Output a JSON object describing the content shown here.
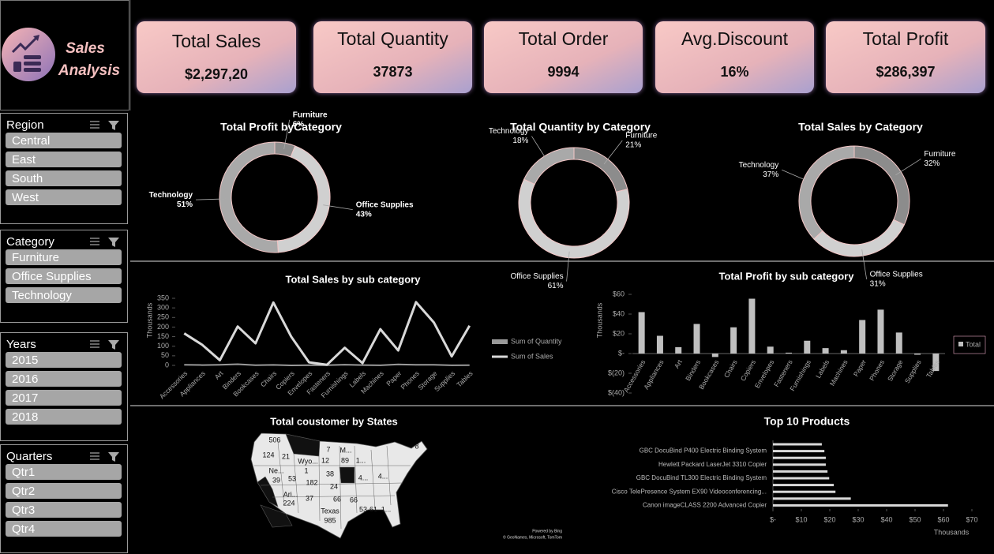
{
  "brand": {
    "line1": "Sales",
    "line2": "Analysis"
  },
  "kpis": [
    {
      "label": "Total Sales",
      "value": "$2,297,20"
    },
    {
      "label": "Total Quantity",
      "value": "37873"
    },
    {
      "label": "Total Order",
      "value": "9994"
    },
    {
      "label": "Avg.Discount",
      "value": "16%"
    },
    {
      "label": "Total Profit",
      "value": "$286,397"
    }
  ],
  "slicers": [
    {
      "title": "Region",
      "items": [
        "Central",
        "East",
        "South",
        "West"
      ]
    },
    {
      "title": "Category",
      "items": [
        "Furniture",
        "Office Supplies",
        "Technology"
      ]
    },
    {
      "title": "Years",
      "items": [
        "2015",
        "2016",
        "2017",
        "2018"
      ]
    },
    {
      "title": "Quarters",
      "items": [
        "Qtr1",
        "Qtr2",
        "Qtr3",
        "Qtr4"
      ]
    }
  ],
  "chart_data": [
    {
      "type": "donut",
      "title": "Total Profit byCategory",
      "categories": [
        "Furniture",
        "Office Supplies",
        "Technology"
      ],
      "values": [
        6,
        43,
        51
      ],
      "value_labels": [
        "6%",
        "43%",
        "51%"
      ],
      "colors": [
        "#8c8c8c",
        "#d0d0d0",
        "#a9a9a9"
      ]
    },
    {
      "type": "donut",
      "title": "Total Quantity by Category",
      "categories": [
        "Furniture",
        "Office Supplies",
        "Technology"
      ],
      "values": [
        21,
        61,
        18
      ],
      "value_labels": [
        "21%",
        "61%",
        "18%"
      ],
      "colors": [
        "#8c8c8c",
        "#d0d0d0",
        "#a9a9a9"
      ]
    },
    {
      "type": "donut",
      "title": "Total Sales by Category",
      "categories": [
        "Furniture",
        "Office Supplies",
        "Technology"
      ],
      "values": [
        32,
        31,
        37
      ],
      "value_labels": [
        "32%",
        "31%",
        "37%"
      ],
      "colors": [
        "#8c8c8c",
        "#d0d0d0",
        "#a9a9a9"
      ]
    },
    {
      "type": "line",
      "title": "Total Sales by sub category",
      "ylabel": "Thousands",
      "categories": [
        "Accessories",
        "Appliances",
        "Art",
        "Binders",
        "Bookcases",
        "Chairs",
        "Copiers",
        "Envelopes",
        "Fasteners",
        "Furnishings",
        "Labels",
        "Machines",
        "Paper",
        "Phones",
        "Storage",
        "Supplies",
        "Tables"
      ],
      "series": [
        {
          "name": "Sum of Quantity",
          "color": "#9a9a9a",
          "values": [
            2.976,
            1.755,
            3,
            6,
            0.868,
            2.356,
            0.234,
            0.906,
            0.914,
            3.563,
            1.4,
            0.44,
            5.178,
            3.289,
            3.158,
            0.647,
            1.241
          ]
        },
        {
          "name": "Sum of Sales",
          "color": "#d9d9d9",
          "values": [
            167,
            108,
            27,
            203,
            115,
            328,
            150,
            16,
            3,
            92,
            12,
            189,
            78,
            330,
            224,
            47,
            207
          ]
        }
      ],
      "ylim": [
        0,
        350
      ],
      "yticks": [
        0,
        50,
        100,
        150,
        200,
        250,
        300,
        350
      ],
      "legend": "right"
    },
    {
      "type": "bar",
      "title": "Total Profit by sub category",
      "ylabel": "Thousands",
      "categories": [
        "Accessories",
        "Appliances",
        "Art",
        "Binders",
        "Bookcases",
        "Chairs",
        "Copiers",
        "Envelopes",
        "Fasteners",
        "Furnishings",
        "Labels",
        "Machines",
        "Paper",
        "Phones",
        "Storage",
        "Supplies",
        "Tables"
      ],
      "series": [
        {
          "name": "Total",
          "color": "#bfbfbf",
          "values": [
            42,
            18,
            6.5,
            30,
            -3.5,
            26.6,
            55.6,
            7,
            0.9,
            13,
            5.5,
            3.4,
            34,
            44.5,
            21.3,
            -1.2,
            -17.7
          ]
        }
      ],
      "ylim": [
        -40,
        60
      ],
      "yticks": [
        {
          "value": -40,
          "label": "$(40)"
        },
        {
          "value": -20,
          "label": "$(20)"
        },
        {
          "value": 0,
          "label": "$-"
        },
        {
          "value": 20,
          "label": "$20"
        },
        {
          "value": 40,
          "label": "$40"
        },
        {
          "value": 60,
          "label": "$60"
        }
      ],
      "legend": "right"
    },
    {
      "type": "map",
      "title": "Total coustomer by States",
      "labels": [
        "506",
        "124",
        "21",
        "7",
        "M...",
        "8",
        "Wyo...",
        "12",
        "89",
        "1...",
        "1",
        "38",
        "Ne...",
        "39",
        "53",
        "182",
        "4...",
        "4...",
        "Ari...",
        "224",
        "37",
        "24",
        "66",
        "66",
        "Texas",
        "985",
        "53",
        "61",
        "1..."
      ],
      "attribution": [
        "Powered by Bing",
        "© GeoNames, Microsoft, TomTom"
      ]
    },
    {
      "type": "barh",
      "title": "Top 10 Products",
      "xlabel": "Thousands",
      "categories": [
        null,
        "GBC DocuBind P400 Electric Binding System",
        null,
        "Hewlett Packard LaserJet 3310 Copier",
        null,
        "GBC DocuBind TL300 Electric Binding System",
        null,
        "Cisco TelePresence System EX90 Videoconferencing...",
        null,
        "Canon imageCLASS 2200 Advanced Copier"
      ],
      "values": [
        17.2,
        18.1,
        18.6,
        18.6,
        19.2,
        19.8,
        21.4,
        22.0,
        27.4,
        61.6
      ],
      "color": "#d9d9d9",
      "xlim": [
        0,
        70
      ],
      "xticks": [
        {
          "value": 0,
          "label": "$-"
        },
        {
          "value": 10,
          "label": "$10"
        },
        {
          "value": 20,
          "label": "$20"
        },
        {
          "value": 30,
          "label": "$30"
        },
        {
          "value": 40,
          "label": "$40"
        },
        {
          "value": 50,
          "label": "$50"
        },
        {
          "value": 60,
          "label": "$60"
        },
        {
          "value": 70,
          "label": "$70"
        }
      ]
    }
  ]
}
